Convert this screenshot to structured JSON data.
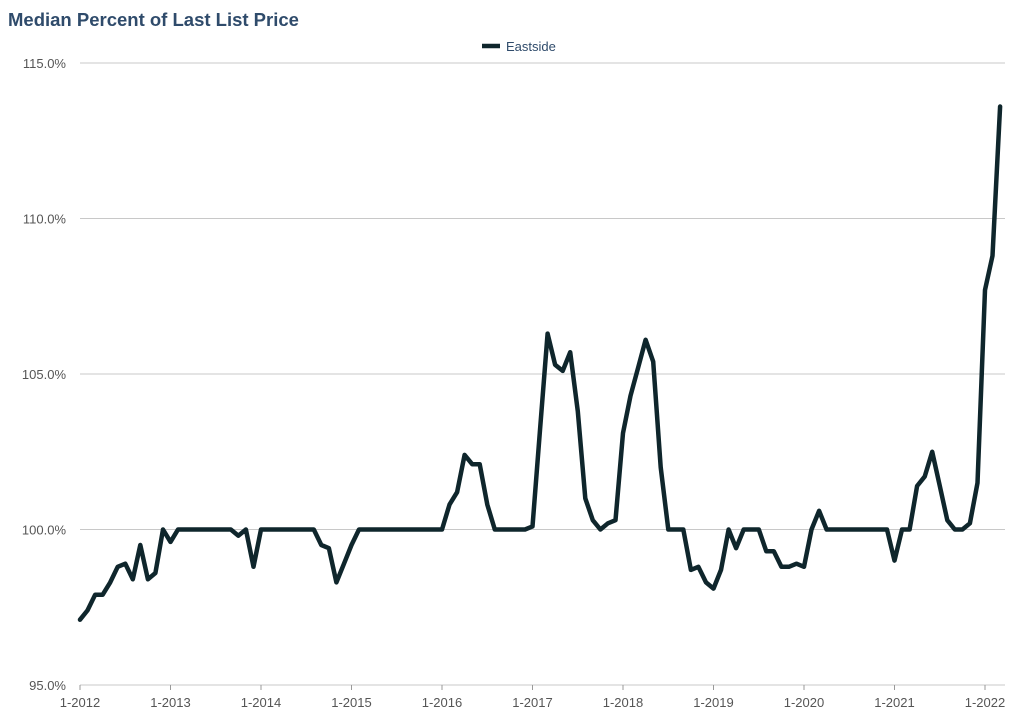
{
  "chart_data": {
    "type": "line",
    "title": "Median Percent of Last List Price",
    "xlabel": "",
    "ylabel": "",
    "ylim": [
      95,
      115
    ],
    "yticks": [
      "95.0%",
      "100.0%",
      "105.0%",
      "110.0%",
      "115.0%"
    ],
    "ytick_values": [
      95,
      100,
      105,
      110,
      115
    ],
    "xticks": [
      "1-2012",
      "1-2013",
      "1-2014",
      "1-2015",
      "1-2016",
      "1-2017",
      "1-2018",
      "1-2019",
      "1-2020",
      "1-2021",
      "1-2022"
    ],
    "x_start": "1-2012",
    "x_interval": "month",
    "grid": true,
    "legend_position": "top-center",
    "line_color": "#0f262c",
    "series": [
      {
        "name": "Eastside",
        "values": [
          97.1,
          97.4,
          97.9,
          97.9,
          98.3,
          98.8,
          98.9,
          98.4,
          99.5,
          98.4,
          98.6,
          100.0,
          99.6,
          100,
          100,
          100,
          100,
          100,
          100,
          100,
          100,
          99.8,
          100,
          98.8,
          100,
          100,
          100,
          100,
          100,
          100,
          100,
          100,
          99.5,
          99.4,
          98.3,
          98.9,
          99.5,
          100,
          100,
          100,
          100,
          100,
          100,
          100,
          100,
          100,
          100,
          100,
          100,
          100.8,
          101.2,
          102.4,
          102.1,
          102.1,
          100.8,
          100,
          100,
          100,
          100,
          100,
          100.1,
          103.2,
          106.3,
          105.3,
          105.1,
          105.7,
          103.8,
          101.0,
          100.3,
          100,
          100.2,
          100.3,
          103.1,
          104.3,
          105.2,
          106.1,
          105.4,
          102.0,
          100,
          100,
          100,
          98.7,
          98.8,
          98.3,
          98.1,
          98.7,
          100,
          99.4,
          100,
          100,
          100,
          99.3,
          99.3,
          98.8,
          98.8,
          98.9,
          98.8,
          100,
          100.6,
          100,
          100,
          100,
          100,
          100,
          100,
          100,
          100,
          100,
          99.0,
          100,
          100,
          101.4,
          101.7,
          102.5,
          101.4,
          100.3,
          100,
          100,
          100.2,
          101.5,
          107.7,
          108.8,
          113.6
        ]
      }
    ]
  }
}
